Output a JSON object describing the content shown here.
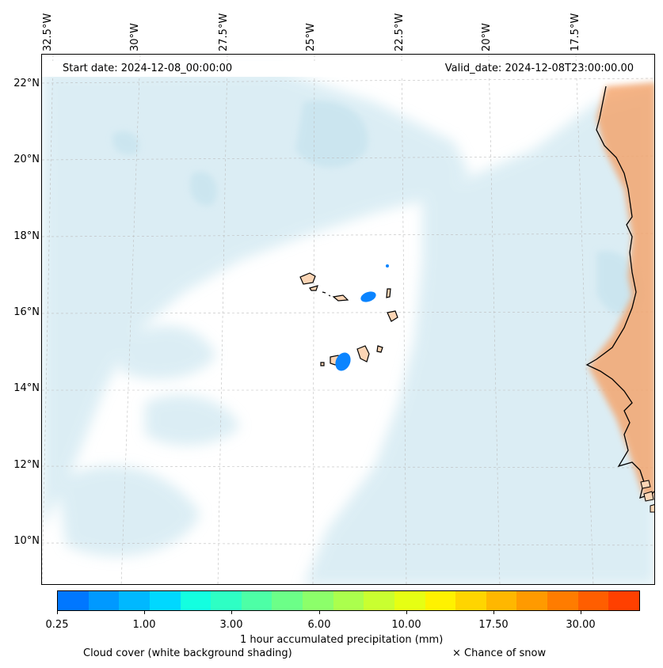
{
  "map": {
    "longitude_labels": [
      "32.5°W",
      "30°W",
      "27.5°W",
      "25°W",
      "22.5°W",
      "20°W",
      "17.5°W"
    ],
    "latitude_labels": [
      "22°N",
      "20°N",
      "18°N",
      "16°N",
      "14°N",
      "12°N",
      "10°N"
    ],
    "start_date_label": "Start date: 2024-12-08_00:00:00",
    "valid_date_label": "Valid_date: 2024-12-08T23:00:00.00",
    "precip_color": "#0a84ff",
    "cloud_color": "#bfe0ec",
    "heat_color": "#f5a268"
  },
  "colorbar": {
    "colors": [
      "#0077ff",
      "#0099ff",
      "#00b8ff",
      "#00d8ff",
      "#13ffe0",
      "#2effc4",
      "#4dffa6",
      "#6cff88",
      "#8cff6a",
      "#abff4d",
      "#c9ff30",
      "#e6ff13",
      "#fff200",
      "#ffd500",
      "#ffb700",
      "#ff9a00",
      "#ff7c00",
      "#ff5e00",
      "#ff4000"
    ],
    "tick_labels": [
      "0.25",
      "1.00",
      "3.00",
      "6.00",
      "10.00",
      "17.50",
      "30.00"
    ],
    "label": "1 hour accumulated precipitation (mm)"
  },
  "footer": {
    "cloud_cover_label": "Cloud cover (white background shading)",
    "snow_label": "× Chance of snow"
  }
}
